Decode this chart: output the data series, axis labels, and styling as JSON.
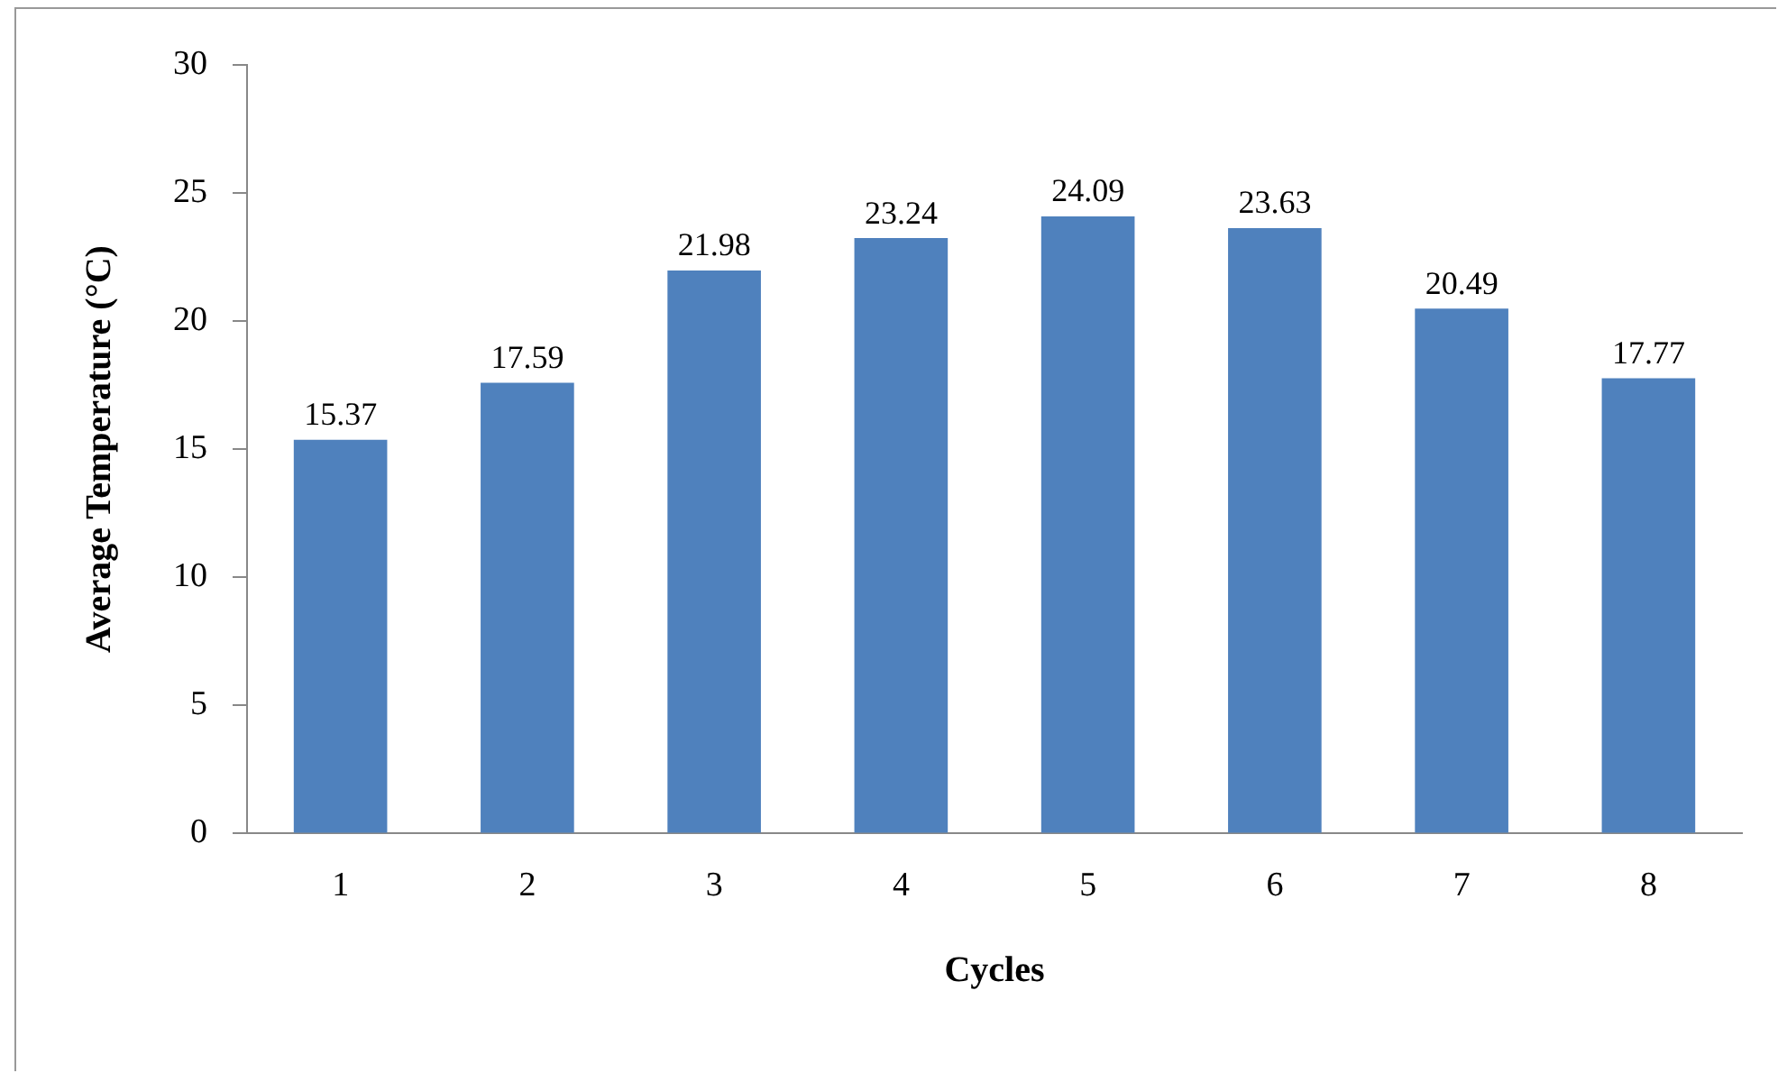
{
  "chart_data": {
    "type": "bar",
    "xlabel": "Cycles",
    "ylabel": "Average Temperature (°C)",
    "categories": [
      "1",
      "2",
      "3",
      "4",
      "5",
      "6",
      "7",
      "8"
    ],
    "values": [
      15.37,
      17.59,
      21.98,
      23.24,
      24.09,
      23.63,
      20.49,
      17.77
    ],
    "color": "#4f81bd",
    "ylim": [
      0,
      30
    ],
    "yticks": [
      0,
      5,
      10,
      15,
      20,
      25,
      30
    ],
    "data_labels": true,
    "grid": false,
    "legend": false
  }
}
